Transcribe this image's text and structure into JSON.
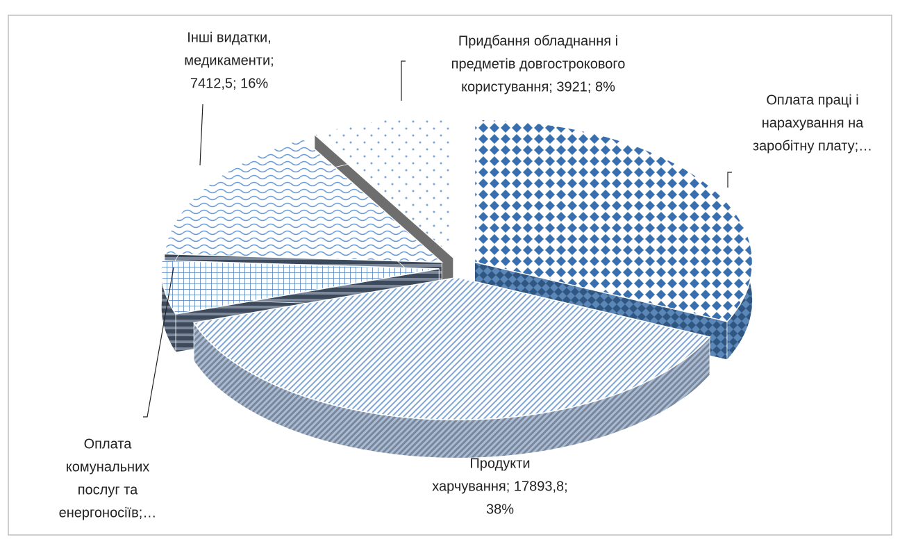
{
  "chart_data": {
    "type": "pie3d",
    "categories": [
      "Оплата праці і нарахування на заробітну плату",
      "Продукти харчування",
      "Оплата комунальних послуг та енергоносіїв",
      "Інші видатки, медикаменти",
      "Придбання обладнання і предметів довгострокового користування"
    ],
    "values": [
      15000,
      17893.8,
      2862,
      7412.5,
      3921
    ],
    "value_labels": [
      [
        "Оплата праці і",
        "нарахування на",
        "заробітну плату;…"
      ],
      [
        "Продукти",
        "харчування; 17893,8;",
        "38%"
      ],
      [
        "Оплата",
        "комунальних",
        "послуг та",
        "енергоносіїв;…"
      ],
      [
        "Інші видатки,",
        "медикаменти;",
        "7412,5; 16%"
      ],
      [
        "Придбання обладнання і",
        "предметів довгострокового",
        "користування; 3921; 8%"
      ]
    ],
    "colors": [
      "#3a6fae",
      "#5b8cc7",
      "#4a7bbf",
      "#6a9bd6",
      "#7aa5d8"
    ]
  }
}
